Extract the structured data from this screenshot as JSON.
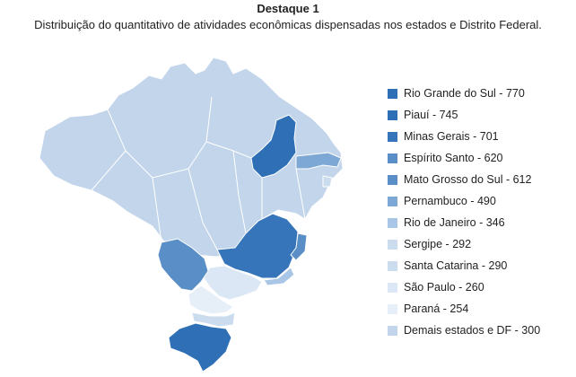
{
  "header": {
    "title": "Destaque 1",
    "subtitle": "Distribuição do quantitativo de atividades econômicas dispensadas nos estados e Distrito Federal."
  },
  "colors": {
    "level_1": "#2f6fb5",
    "level_2": "#3775bb",
    "level_3": "#5a8ec6",
    "level_4": "#7da7d4",
    "level_5": "#a9c6e6",
    "level_6": "#cbdcef",
    "level_7": "#dbe7f4",
    "level_8": "#e6eef8",
    "default": "#c2d5eb",
    "border": "#ffffff"
  },
  "legend": [
    {
      "label": "Rio Grande do Sul - 770",
      "color": "#2f6fb5"
    },
    {
      "label": "Piauí - 745",
      "color": "#2f6fb5"
    },
    {
      "label": "Minas Gerais - 701",
      "color": "#3775bb"
    },
    {
      "label": "Espírito Santo - 620",
      "color": "#5a8ec6"
    },
    {
      "label": "Mato Grosso do Sul - 612",
      "color": "#5a8ec6"
    },
    {
      "label": "Pernambuco - 490",
      "color": "#7da7d4"
    },
    {
      "label": "Rio de Janeiro - 346",
      "color": "#a9c6e6"
    },
    {
      "label": "Sergipe - 292",
      "color": "#cbdcef"
    },
    {
      "label": "Santa Catarina - 290",
      "color": "#cbdcef"
    },
    {
      "label": "São Paulo - 260",
      "color": "#dbe7f4"
    },
    {
      "label": "Paraná - 254",
      "color": "#e6eef8"
    },
    {
      "label": "Demais estados e DF - 300",
      "color": "#c2d5eb"
    }
  ]
}
